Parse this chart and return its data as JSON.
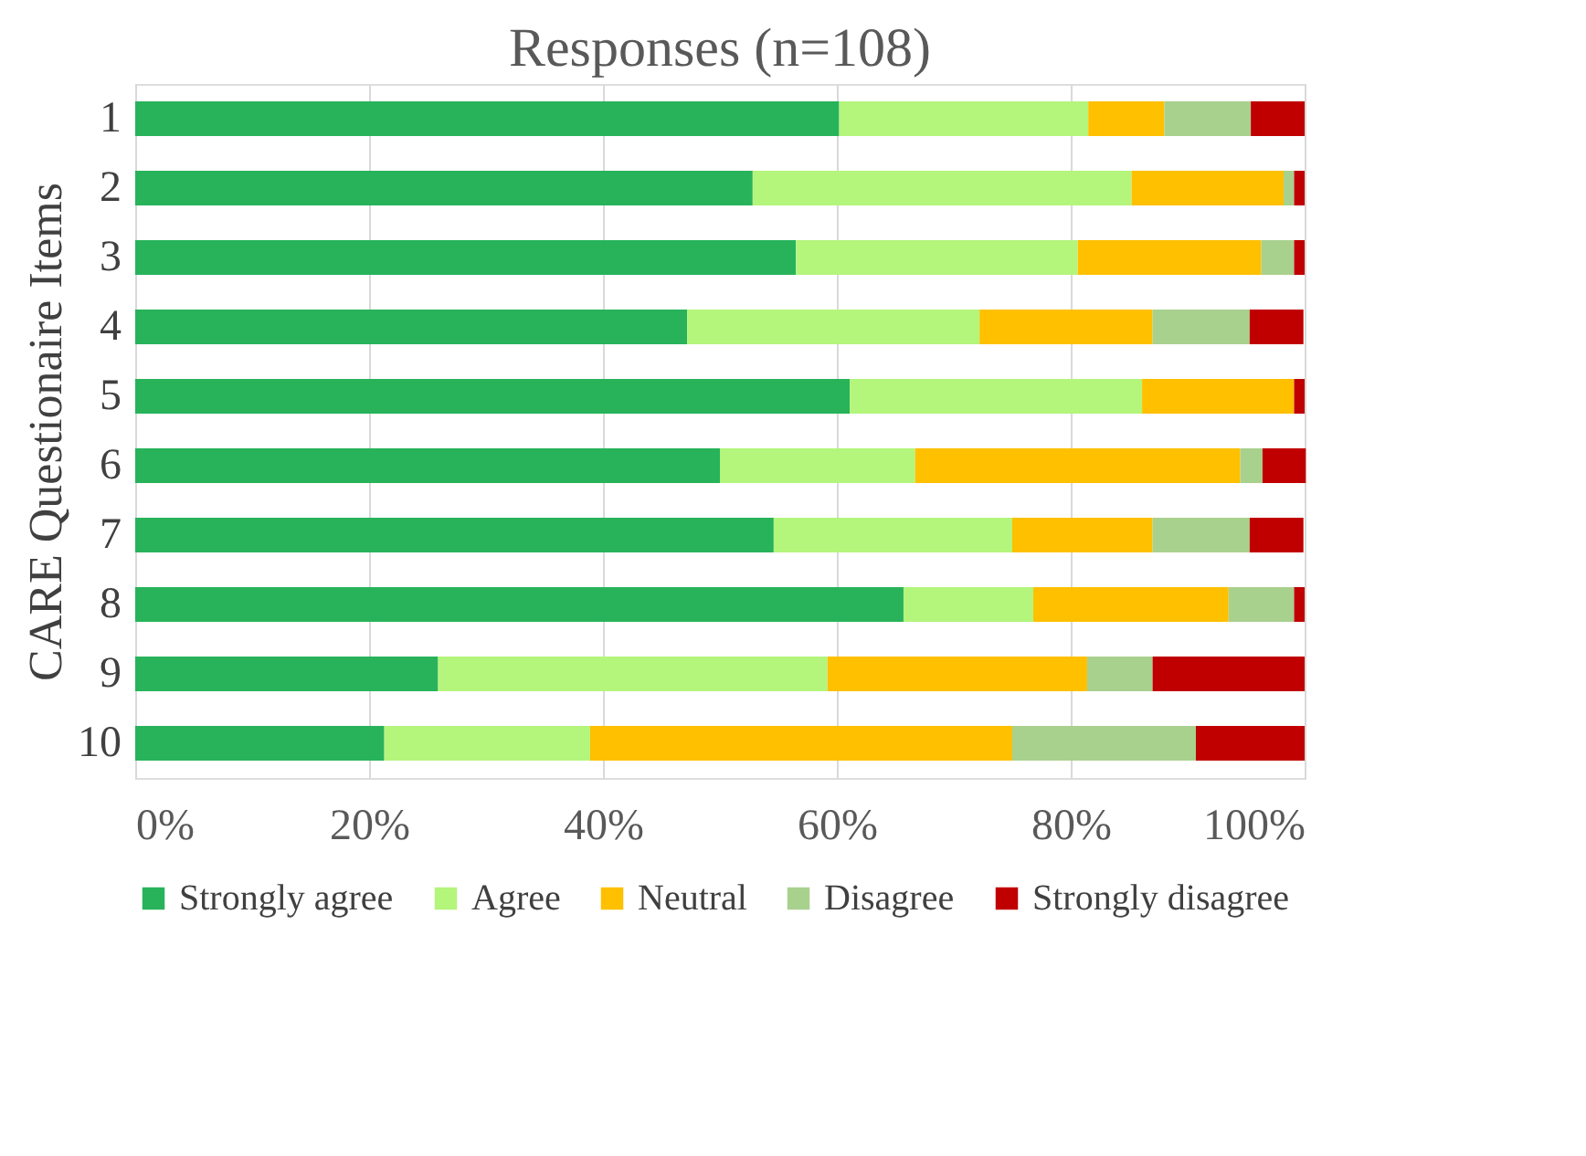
{
  "chart_data": {
    "type": "bar",
    "orientation": "horizontal",
    "stacked": true,
    "title": "Responses (n=108)",
    "ylabel": "CARE Questionaire Items",
    "categories": [
      "1",
      "2",
      "3",
      "4",
      "5",
      "6",
      "7",
      "8",
      "9",
      "10"
    ],
    "series": [
      {
        "name": "Strongly agree",
        "color": "#28b35b",
        "values": [
          60.2,
          52.8,
          56.5,
          47.2,
          61.1,
          50,
          54.6,
          65.7,
          25.9,
          21.3
        ]
      },
      {
        "name": "Agree",
        "color": "#b4f57c",
        "values": [
          21.3,
          32.4,
          24.1,
          25,
          25,
          16.7,
          20.4,
          11.1,
          33.3,
          17.6
        ]
      },
      {
        "name": "Neutral",
        "color": "#ffc000",
        "values": [
          6.5,
          13,
          15.7,
          14.8,
          13,
          27.8,
          12,
          16.7,
          22.2,
          36.1
        ]
      },
      {
        "name": "Disagree",
        "color": "#a9d18e",
        "values": [
          7.4,
          0.9,
          2.8,
          8.3,
          0,
          1.9,
          8.3,
          5.6,
          5.6,
          15.7
        ]
      },
      {
        "name": "Strongly disagree",
        "color": "#c00000",
        "values": [
          4.6,
          0.9,
          0.9,
          4.6,
          0.9,
          3.7,
          4.6,
          0.9,
          13,
          9.3
        ]
      }
    ],
    "xlim": [
      0,
      100
    ],
    "xticks": [
      {
        "value": 0,
        "label": "0%"
      },
      {
        "value": 20,
        "label": "20%"
      },
      {
        "value": 40,
        "label": "40%"
      },
      {
        "value": 60,
        "label": "60%"
      },
      {
        "value": 80,
        "label": "80%"
      },
      {
        "value": 100,
        "label": "100%"
      }
    ],
    "grid": "x",
    "legend": "bottom"
  }
}
